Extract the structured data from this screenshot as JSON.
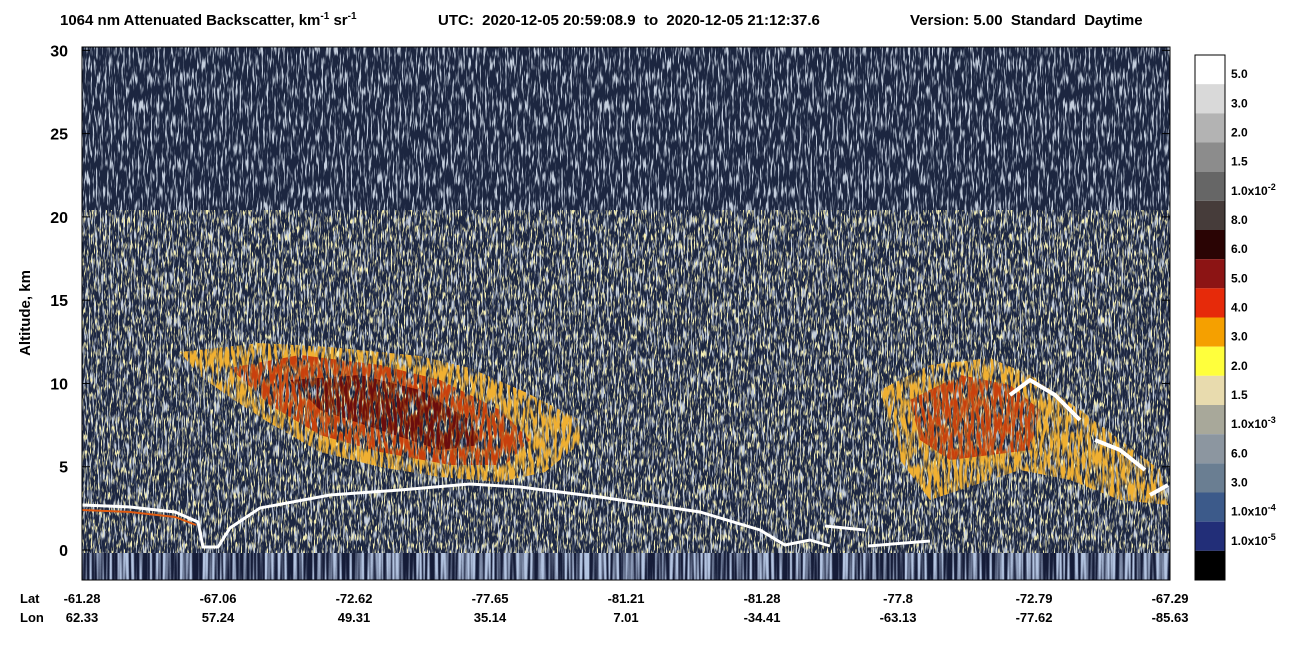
{
  "chart_data": {
    "type": "heatmap",
    "title": [
      "1064 nm Attenuated Backscatter, km",
      "-1",
      " sr",
      "-1"
    ],
    "utc": "UTC:  2020-12-05 20:59:08.9  to  2020-12-05 21:12:37.6",
    "version": "Version: 5.00  Standard  Daytime",
    "ylabel": "Altitude, km",
    "ylim": [
      -1.8,
      30.2
    ],
    "yticks": [
      0,
      5,
      10,
      15,
      20,
      25,
      30
    ],
    "lat_label": "Lat",
    "lon_label": "Lon",
    "lat": [
      -61.28,
      -67.06,
      -72.62,
      -77.65,
      -81.21,
      -81.28,
      -77.8,
      -72.79,
      -67.29
    ],
    "lon": [
      62.33,
      57.24,
      49.31,
      35.14,
      7.01,
      -34.41,
      -63.13,
      -77.62,
      -85.63
    ],
    "colorbar": {
      "colors": [
        "#ffffff",
        "#d9d9d9",
        "#b3b3b3",
        "#8c8c8c",
        "#666666",
        "#463c3a",
        "#2a0404",
        "#8c1414",
        "#e62a0a",
        "#f5a000",
        "#ffff3c",
        "#e8dbae",
        "#a8a89a",
        "#8c96a0",
        "#6a7e92",
        "#3c5a8a",
        "#222e78",
        "#000000"
      ],
      "labels": [
        "5.0",
        "3.0",
        "2.0",
        "1.5",
        {
          "base": "1.0x10",
          "exp": "-2"
        },
        "8.0",
        "6.0",
        "5.0",
        "4.0",
        "3.0",
        "2.0",
        "1.5",
        {
          "base": "1.0x10",
          "exp": "-3"
        },
        "6.0",
        "3.0",
        {
          "base": "1.0x10",
          "exp": "-4"
        },
        {
          "base": "1.0x10",
          "exp": "-5"
        }
      ]
    }
  }
}
